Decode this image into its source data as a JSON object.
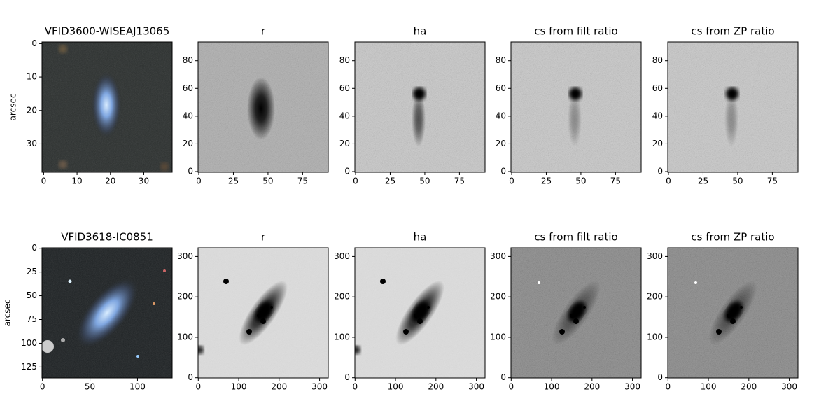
{
  "chart_data": [
    {
      "type": "image",
      "title": "VFID3600-WISEAJ13065",
      "ylabel": "arcsec",
      "xlim": [
        -0.5,
        38.5
      ],
      "ylim": [
        38.5,
        -0.5
      ],
      "xticks": [
        0,
        10,
        20,
        30
      ],
      "yticks": [
        0,
        10,
        20,
        30
      ]
    },
    {
      "type": "image",
      "title": "r",
      "xlim": [
        -0.5,
        93.5
      ],
      "ylim": [
        -0.5,
        93.5
      ],
      "xticks": [
        0,
        25,
        50,
        75
      ],
      "yticks": [
        0,
        20,
        40,
        60,
        80
      ]
    },
    {
      "type": "image",
      "title": "ha",
      "xlim": [
        -0.5,
        93.5
      ],
      "ylim": [
        -0.5,
        93.5
      ],
      "xticks": [
        0,
        25,
        50,
        75
      ],
      "yticks": [
        0,
        20,
        40,
        60,
        80
      ]
    },
    {
      "type": "image",
      "title": "cs from filt ratio",
      "xlim": [
        -0.5,
        93.5
      ],
      "ylim": [
        -0.5,
        93.5
      ],
      "xticks": [
        0,
        25,
        50,
        75
      ],
      "yticks": [
        0,
        20,
        40,
        60,
        80
      ]
    },
    {
      "type": "image",
      "title": "cs from ZP ratio",
      "xlim": [
        -0.5,
        93.5
      ],
      "ylim": [
        -0.5,
        93.5
      ],
      "xticks": [
        0,
        25,
        50,
        75
      ],
      "yticks": [
        0,
        20,
        40,
        60,
        80
      ]
    },
    {
      "type": "image",
      "title": "VFID3618-IC0851",
      "ylabel": "arcsec",
      "xlim": [
        -0.5,
        136.5
      ],
      "ylim": [
        136.5,
        -0.5
      ],
      "xticks": [
        0,
        50,
        100
      ],
      "yticks": [
        0,
        25,
        50,
        75,
        100,
        125
      ]
    },
    {
      "type": "image",
      "title": "r",
      "xlim": [
        -0.5,
        321.5
      ],
      "ylim": [
        -0.5,
        321.5
      ],
      "xticks": [
        0,
        100,
        200,
        300
      ],
      "yticks": [
        0,
        100,
        200,
        300
      ]
    },
    {
      "type": "image",
      "title": "ha",
      "xlim": [
        -0.5,
        321.5
      ],
      "ylim": [
        -0.5,
        321.5
      ],
      "xticks": [
        0,
        100,
        200,
        300
      ],
      "yticks": [
        0,
        100,
        200,
        300
      ]
    },
    {
      "type": "image",
      "title": "cs from filt ratio",
      "xlim": [
        -0.5,
        321.5
      ],
      "ylim": [
        -0.5,
        321.5
      ],
      "xticks": [
        0,
        100,
        200,
        300
      ],
      "yticks": [
        0,
        100,
        200,
        300
      ]
    },
    {
      "type": "image",
      "title": "cs from ZP ratio",
      "xlim": [
        -0.5,
        321.5
      ],
      "ylim": [
        -0.5,
        321.5
      ],
      "xticks": [
        0,
        100,
        200,
        300
      ],
      "yticks": [
        0,
        100,
        200,
        300
      ]
    }
  ]
}
